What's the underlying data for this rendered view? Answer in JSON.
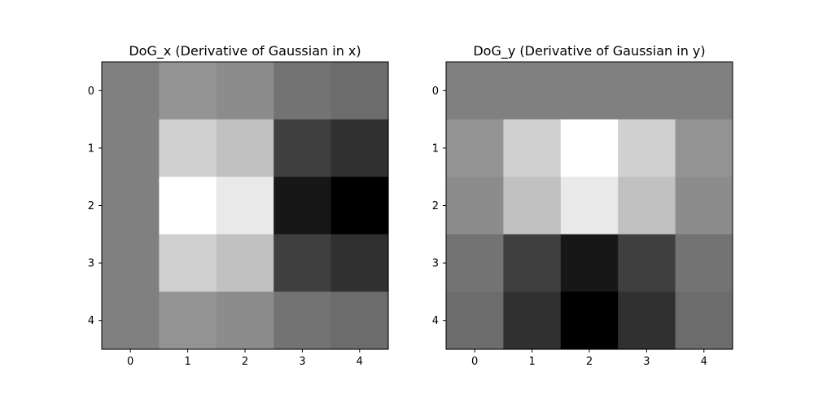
{
  "chart_data": [
    {
      "type": "heatmap",
      "title": "DoG_x (Derivative of Gaussian in x)",
      "x_ticks": [
        "0",
        "1",
        "2",
        "3",
        "4"
      ],
      "y_ticks": [
        "0",
        "1",
        "2",
        "3",
        "4"
      ],
      "colormap": "gray",
      "grid": false,
      "values": [
        [
          128,
          147,
          140,
          115,
          108
        ],
        [
          128,
          208,
          193,
          63,
          48
        ],
        [
          128,
          255,
          233,
          23,
          0
        ],
        [
          128,
          208,
          193,
          63,
          48
        ],
        [
          128,
          147,
          140,
          115,
          108
        ]
      ]
    },
    {
      "type": "heatmap",
      "title": "DoG_y (Derivative of Gaussian in y)",
      "x_ticks": [
        "0",
        "1",
        "2",
        "3",
        "4"
      ],
      "y_ticks": [
        "0",
        "1",
        "2",
        "3",
        "4"
      ],
      "colormap": "gray",
      "grid": false,
      "values": [
        [
          128,
          128,
          128,
          128,
          128
        ],
        [
          147,
          208,
          255,
          208,
          147
        ],
        [
          140,
          193,
          233,
          193,
          140
        ],
        [
          115,
          63,
          23,
          63,
          115
        ],
        [
          108,
          48,
          0,
          48,
          108
        ]
      ]
    }
  ]
}
